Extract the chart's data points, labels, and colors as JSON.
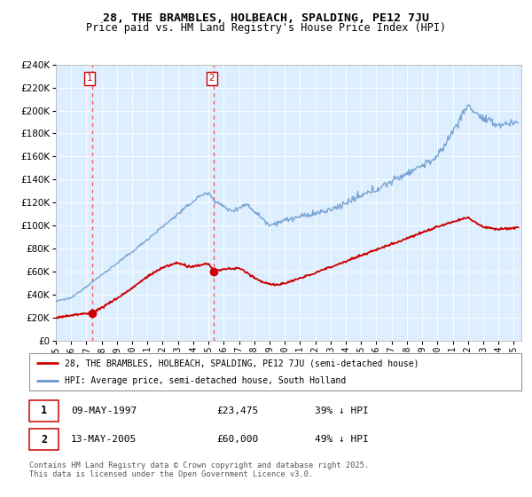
{
  "title_line1": "28, THE BRAMBLES, HOLBEACH, SPALDING, PE12 7JU",
  "title_line2": "Price paid vs. HM Land Registry's House Price Index (HPI)",
  "ylim": [
    0,
    240000
  ],
  "yticks": [
    0,
    20000,
    40000,
    60000,
    80000,
    100000,
    120000,
    140000,
    160000,
    180000,
    200000,
    220000,
    240000
  ],
  "xlim_start": 1995.0,
  "xlim_end": 2025.5,
  "sale1_x": 1997.36,
  "sale1_y": 23475,
  "sale2_x": 2005.36,
  "sale2_y": 60000,
  "sale1_date": "09-MAY-1997",
  "sale1_price": "£23,475",
  "sale1_hpi": "39% ↓ HPI",
  "sale2_date": "13-MAY-2005",
  "sale2_price": "£60,000",
  "sale2_hpi": "49% ↓ HPI",
  "legend_line1": "28, THE BRAMBLES, HOLBEACH, SPALDING, PE12 7JU (semi-detached house)",
  "legend_line2": "HPI: Average price, semi-detached house, South Holland",
  "footer": "Contains HM Land Registry data © Crown copyright and database right 2025.\nThis data is licensed under the Open Government Licence v3.0.",
  "red_color": "#cc0000",
  "blue_color": "#6699cc",
  "plot_bg_color": "#ddeeff",
  "vline_color": "#ff5555",
  "background_color": "#ffffff",
  "grid_color": "#ffffff"
}
